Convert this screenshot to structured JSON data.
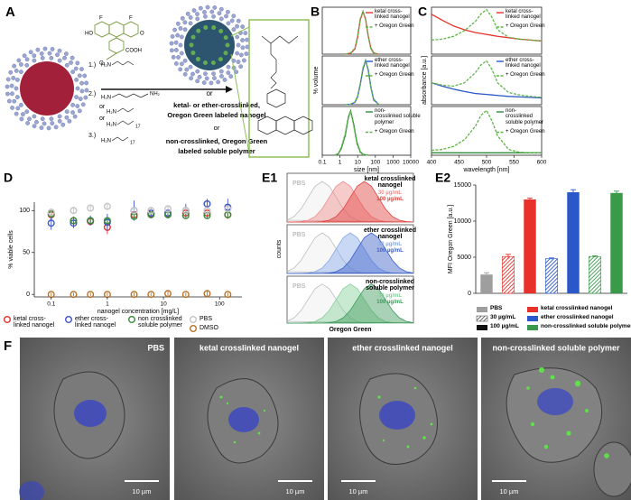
{
  "chart_data": [
    {
      "type": "line",
      "panel": "B",
      "xlog": true,
      "xlim": [
        0.1,
        10000
      ],
      "ylim": [
        0,
        110
      ],
      "x": [
        2,
        4,
        7,
        10,
        14,
        20,
        28,
        40,
        56,
        80,
        150
      ],
      "series": [
        {
          "name": "ketal cross-\nlinked nanogel",
          "color": "#e8312b",
          "values": [
            0,
            2,
            12,
            40,
            80,
            100,
            82,
            42,
            14,
            3,
            0
          ]
        },
        {
          "name": "+ Oregon Green",
          "color": "#5fb548",
          "style": "dashed",
          "values": [
            0,
            3,
            14,
            44,
            83,
            100,
            80,
            40,
            12,
            2,
            0
          ]
        }
      ]
    },
    {
      "type": "line",
      "xlog": true,
      "xlim": [
        0.1,
        10000
      ],
      "ylim": [
        0,
        110
      ],
      "ylabel": "% volume",
      "x": [
        2,
        4,
        7,
        10,
        14,
        20,
        28,
        40,
        56,
        80,
        150
      ],
      "series": [
        {
          "name": "ether cross-\nlinked nanogel",
          "color": "#2a57c9",
          "values": [
            0,
            1,
            5,
            18,
            45,
            80,
            100,
            78,
            40,
            12,
            1
          ]
        },
        {
          "name": "+ Oregon Green",
          "color": "#5fb548",
          "style": "dashed",
          "values": [
            0,
            1,
            6,
            20,
            48,
            84,
            100,
            75,
            38,
            10,
            1
          ]
        }
      ]
    },
    {
      "type": "line",
      "xlog": true,
      "xlim": [
        0.1,
        10000
      ],
      "ylim": [
        0,
        110
      ],
      "xlabel": "size [nm]",
      "xticks": [
        0.1,
        1,
        10,
        100,
        1000,
        10000
      ],
      "x": [
        0.5,
        0.8,
        1.2,
        2,
        3,
        4,
        6,
        9,
        14,
        20,
        40
      ],
      "series": [
        {
          "name": "non-\ncrosslinked soluble\npolymer",
          "color": "#2e8b3a",
          "values": [
            0,
            3,
            15,
            45,
            85,
            100,
            70,
            30,
            8,
            2,
            0
          ]
        },
        {
          "name": "+ Oregon Green",
          "color": "#5fb548",
          "style": "dashed",
          "values": [
            0,
            4,
            18,
            50,
            88,
            100,
            66,
            26,
            6,
            1,
            0
          ]
        }
      ]
    },
    {
      "type": "line",
      "panel": "C",
      "xlim": [
        400,
        600
      ],
      "ylim": [
        0,
        1
      ],
      "x": [
        400,
        420,
        440,
        460,
        480,
        490,
        500,
        510,
        520,
        540,
        560,
        580,
        600
      ],
      "series": [
        {
          "name": "ketal cross-\nlinked nanogel",
          "color": "#e8312b",
          "values": [
            0.85,
            0.72,
            0.6,
            0.52,
            0.46,
            0.44,
            0.42,
            0.4,
            0.38,
            0.35,
            0.32,
            0.3,
            0.28
          ]
        },
        {
          "name": "+ Oregon Green",
          "color": "#5fb548",
          "style": "dashed",
          "values": [
            0.3,
            0.32,
            0.38,
            0.5,
            0.7,
            0.86,
            0.95,
            0.78,
            0.52,
            0.36,
            0.32,
            0.3,
            0.28
          ]
        }
      ]
    },
    {
      "type": "line",
      "xlim": [
        400,
        600
      ],
      "ylim": [
        0,
        1
      ],
      "ylabel": "absorbance [a.u.]",
      "x": [
        400,
        420,
        440,
        460,
        480,
        490,
        500,
        510,
        520,
        540,
        560,
        580,
        600
      ],
      "series": [
        {
          "name": "ether cross-\nlinked nanogel",
          "color": "#2a57c9",
          "values": [
            0.45,
            0.38,
            0.32,
            0.27,
            0.23,
            0.22,
            0.21,
            0.2,
            0.19,
            0.17,
            0.16,
            0.15,
            0.14
          ]
        },
        {
          "name": "+ Oregon Green",
          "color": "#5fb548",
          "style": "dashed",
          "values": [
            0.45,
            0.4,
            0.38,
            0.45,
            0.66,
            0.82,
            0.9,
            0.72,
            0.45,
            0.25,
            0.2,
            0.17,
            0.15
          ]
        }
      ]
    },
    {
      "type": "line",
      "xlim": [
        400,
        600
      ],
      "ylim": [
        0,
        1
      ],
      "xlabel": "wavelength [nm]",
      "xticks": [
        400,
        450,
        500,
        550,
        600
      ],
      "x": [
        400,
        420,
        440,
        460,
        480,
        490,
        500,
        510,
        520,
        540,
        560,
        580,
        600
      ],
      "series": [
        {
          "name": "non-\ncrosslinked\nsoluble polymer",
          "color": "#2e8b3a",
          "values": [
            0.05,
            0.05,
            0.05,
            0.05,
            0.05,
            0.05,
            0.05,
            0.05,
            0.05,
            0.05,
            0.05,
            0.05,
            0.05
          ]
        },
        {
          "name": "+ Oregon Green",
          "color": "#5fb548",
          "style": "dashed",
          "values": [
            0.1,
            0.12,
            0.18,
            0.32,
            0.6,
            0.82,
            0.92,
            0.7,
            0.4,
            0.12,
            0.06,
            0.05,
            0.05
          ]
        }
      ]
    },
    {
      "type": "scatter",
      "panel": "D",
      "xlog": true,
      "xlim": [
        0.05,
        250
      ],
      "ylim": [
        -3,
        110
      ],
      "xticks": [
        0.1,
        1,
        10,
        100
      ],
      "yticks": [
        0,
        50,
        100
      ],
      "xlabel": "nanogel concentration [mg/L]",
      "ylabel": "% viable cells",
      "x": [
        0.1,
        0.25,
        0.5,
        1,
        3,
        6,
        12,
        25,
        60,
        140
      ],
      "series": [
        {
          "name": "ketal cross-\nlinked nanogel",
          "color": "#e8312b",
          "values": [
            95,
            88,
            87,
            80,
            95,
            96,
            96,
            97,
            97,
            95
          ],
          "errors": [
            6,
            5,
            5,
            8,
            5,
            4,
            4,
            4,
            4,
            5
          ]
        },
        {
          "name": "ether cross-\nlinked nanogel",
          "color": "#3a55c8",
          "values": [
            85,
            85,
            88,
            86,
            100,
            97,
            97,
            100,
            108,
            104
          ],
          "errors": [
            8,
            6,
            6,
            10,
            12,
            6,
            6,
            8,
            6,
            10
          ]
        },
        {
          "name": "non crosslinked\nsoluble polymer",
          "color": "#3a8a3a",
          "values": [
            96,
            88,
            88,
            88,
            93,
            95,
            95,
            94,
            94,
            95
          ],
          "errors": [
            4,
            4,
            4,
            4,
            4,
            4,
            4,
            4,
            4,
            4
          ]
        },
        {
          "name": "PBS",
          "color": "#c4c4c4",
          "values": [
            98,
            100,
            103,
            105,
            100,
            100,
            102,
            100,
            100,
            102
          ],
          "errors": [
            3,
            3,
            3,
            3,
            3,
            3,
            3,
            3,
            3,
            3
          ]
        },
        {
          "name": "DMSO",
          "color": "#b8742a",
          "values": [
            0,
            0,
            0,
            0,
            0,
            0,
            1,
            0,
            1,
            0
          ],
          "errors": [
            2,
            2,
            2,
            2,
            2,
            2,
            3,
            2,
            3,
            2
          ]
        }
      ]
    },
    {
      "type": "area",
      "panel": "E1",
      "xlim": [
        0,
        18
      ],
      "ylim": [
        0,
        1.2
      ],
      "title": "ketal crosslinked\nnanogel",
      "x": [
        0,
        1,
        2,
        3,
        4,
        5,
        6,
        7,
        8,
        9,
        10,
        11,
        12,
        13,
        14,
        15,
        16,
        17,
        18
      ],
      "series": [
        {
          "name": "PBS",
          "color": "#bdbdbd",
          "values": [
            0.044,
            0.135,
            0.325,
            0.607,
            0.882,
            1,
            0.882,
            0.607,
            0.325,
            0.135,
            0.044,
            0.011,
            0.002,
            0,
            0,
            0,
            0,
            0,
            0
          ]
        },
        {
          "name": "30 µg/mL",
          "color": "#f08c8c",
          "values": [
            0,
            0.002,
            0.011,
            0.044,
            0.135,
            0.325,
            0.607,
            0.882,
            1,
            0.882,
            0.607,
            0.325,
            0.135,
            0.044,
            0.011,
            0.002,
            0,
            0,
            0
          ]
        },
        {
          "name": "100 µg/mL",
          "color": "#e0403c",
          "values": [
            0,
            0,
            0,
            0,
            0.002,
            0.011,
            0.044,
            0.135,
            0.325,
            0.607,
            0.882,
            1,
            0.882,
            0.607,
            0.325,
            0.135,
            0.044,
            0.011,
            0.002
          ]
        }
      ]
    },
    {
      "type": "area",
      "xlim": [
        0,
        18
      ],
      "ylim": [
        0,
        1.2
      ],
      "title": "ether crosslinked\nnanogel",
      "ylabel": "counts",
      "x": [
        0,
        1,
        2,
        3,
        4,
        5,
        6,
        7,
        8,
        9,
        10,
        11,
        12,
        13,
        14,
        15,
        16,
        17,
        18
      ],
      "series": [
        {
          "name": "PBS",
          "color": "#bdbdbd",
          "values": [
            0.044,
            0.135,
            0.325,
            0.607,
            0.882,
            1,
            0.882,
            0.607,
            0.325,
            0.135,
            0.044,
            0.011,
            0.002,
            0,
            0,
            0,
            0,
            0,
            0
          ]
        },
        {
          "name": "30 µg/mL",
          "color": "#86a9e8",
          "values": [
            0,
            0,
            0.002,
            0.011,
            0.044,
            0.135,
            0.325,
            0.607,
            0.882,
            1,
            0.882,
            0.607,
            0.325,
            0.135,
            0.044,
            0.011,
            0.002,
            0,
            0
          ]
        },
        {
          "name": "100 µg/mL",
          "color": "#3a5fc8",
          "values": [
            0,
            0,
            0,
            0,
            0,
            0.002,
            0.011,
            0.044,
            0.135,
            0.325,
            0.607,
            0.882,
            1,
            0.882,
            0.607,
            0.325,
            0.135,
            0.044,
            0.011
          ]
        }
      ]
    },
    {
      "type": "area",
      "xlim": [
        0,
        18
      ],
      "ylim": [
        0,
        1.2
      ],
      "title": "non-crosslinked\nsoluble polymer",
      "xlabel": "Oregon Green",
      "x": [
        0,
        1,
        2,
        3,
        4,
        5,
        6,
        7,
        8,
        9,
        10,
        11,
        12,
        13,
        14,
        15,
        16,
        17,
        18
      ],
      "series": [
        {
          "name": "PBS",
          "color": "#bdbdbd",
          "values": [
            0.044,
            0.135,
            0.325,
            0.607,
            0.882,
            1,
            0.882,
            0.607,
            0.325,
            0.135,
            0.044,
            0.011,
            0.002,
            0,
            0,
            0,
            0,
            0,
            0
          ]
        },
        {
          "name": "30 µg/mL",
          "color": "#86d09a",
          "values": [
            0,
            0,
            0.002,
            0.011,
            0.044,
            0.135,
            0.325,
            0.607,
            0.882,
            1,
            0.882,
            0.607,
            0.325,
            0.135,
            0.044,
            0.011,
            0.002,
            0,
            0
          ]
        },
        {
          "name": "100 µg/mL",
          "color": "#3d9a5a",
          "values": [
            0,
            0,
            0,
            0,
            0,
            0.002,
            0.011,
            0.044,
            0.135,
            0.325,
            0.607,
            0.882,
            1,
            0.882,
            0.607,
            0.325,
            0.135,
            0.044,
            0.011
          ]
        }
      ]
    },
    {
      "type": "bar",
      "panel": "E2",
      "ylim": [
        0,
        15000
      ],
      "yticks": [
        0,
        5000,
        10000,
        15000
      ],
      "ylabel": "MFI Oregon Green [a.u.]",
      "categories": [
        null,
        null,
        null,
        null,
        null,
        null,
        null
      ],
      "values": [
        2600,
        5100,
        13000,
        4800,
        14000,
        5100,
        13900
      ],
      "errors": [
        250,
        300,
        200,
        100,
        350,
        100,
        250
      ],
      "colors": [
        "#9e9e9e",
        "#e8312b",
        "#e8312b",
        "#2a57c9",
        "#2a57c9",
        "#3a9a4a",
        "#3a9a4a"
      ],
      "hatched": [
        false,
        true,
        false,
        true,
        false,
        true,
        false
      ],
      "legend": [
        {
          "label": "PBS",
          "color": "#9e9e9e"
        },
        {
          "label": "30 µg/mL",
          "color": "#555555",
          "hatched": true
        },
        {
          "label": "100 µg/mL",
          "color": "#111111"
        },
        {
          "label": "ketal crosslinked nanogel",
          "color": "#e8312b"
        },
        {
          "label": "ether crosslinked nanogel",
          "color": "#2a57c9"
        },
        {
          "label": "non-crosslinked soluble polymer",
          "color": "#3a9a4a"
        }
      ]
    }
  ],
  "figure_a": {
    "panel": "A",
    "steps": [
      "1.)",
      "2.)",
      "or",
      "or",
      "3.)"
    ],
    "or": "or",
    "captions": [
      "ketal- or ether-crosslinked,",
      "Oregon Green labeled nanogel",
      "or",
      "non-crosslinked, Oregon Green",
      "labeled soluble polymer"
    ],
    "atoms": [
      "H₂N",
      "H₂N",
      "NH₂",
      "H₂N",
      "H₂N",
      "17",
      "H₂N",
      "17",
      "HO",
      "O",
      "F",
      "F",
      "COOH",
      "O"
    ]
  },
  "figure_f": {
    "panel": "F",
    "images": [
      {
        "label": "PBS",
        "scale": "10 µm"
      },
      {
        "label": "ketal crosslinked nanogel",
        "scale": "10 µm"
      },
      {
        "label": "ether crosslinked nanogel",
        "scale": "10 µm"
      },
      {
        "label": "non-crosslinked soluble polymer",
        "scale": "10 µm"
      }
    ]
  }
}
